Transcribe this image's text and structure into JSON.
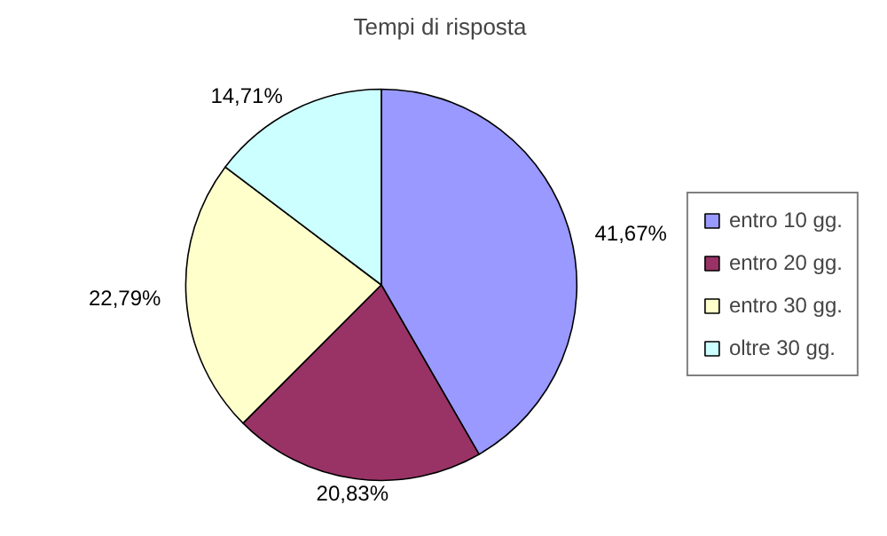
{
  "chart_data": {
    "type": "pie",
    "title": "Tempi di risposta",
    "categories": [
      "entro 10 gg.",
      "entro 20 gg.",
      "entro 30 gg.",
      "oltre 30 gg."
    ],
    "values": [
      41.67,
      20.83,
      22.79,
      14.71
    ],
    "colors": [
      "#9999ff",
      "#993366",
      "#ffffcc",
      "#ccffff"
    ],
    "value_labels": [
      "41,67%",
      "20,83%",
      "22,79%",
      "14,71%"
    ],
    "legend": "right"
  }
}
